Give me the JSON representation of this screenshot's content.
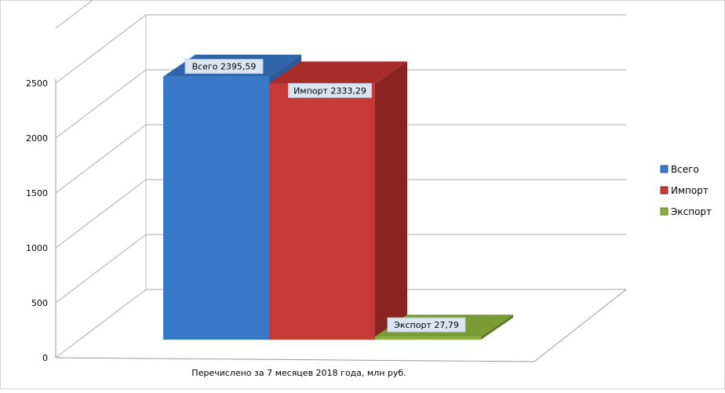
{
  "chart_data": {
    "type": "bar",
    "categories": [
      "Перечислено  за 7 месяцев  2018 года, млн руб."
    ],
    "series": [
      {
        "name": "Всего",
        "values": [
          2395.59
        ],
        "label": "Всего 2395,59",
        "color": "#3a78c8",
        "side": "#2a5a9a",
        "top": "#2f64a8"
      },
      {
        "name": "Импорт",
        "values": [
          2333.29
        ],
        "label": "Импорт 2333,29",
        "color": "#c83a38",
        "side": "#8a2422",
        "top": "#a82c2a"
      },
      {
        "name": "Экспорт",
        "values": [
          27.79
        ],
        "label": "Экспорт 27,79",
        "color": "#8aae3c",
        "side": "#5f7a28",
        "top": "#7a9c34"
      }
    ],
    "yticks": [
      "0",
      "500",
      "1000",
      "1500",
      "2000",
      "2500"
    ],
    "ylim": [
      0,
      3000
    ],
    "grid": true,
    "legend": "right",
    "xlabel": "Перечислено  за 7 месяцев  2018 года, млн руб."
  }
}
